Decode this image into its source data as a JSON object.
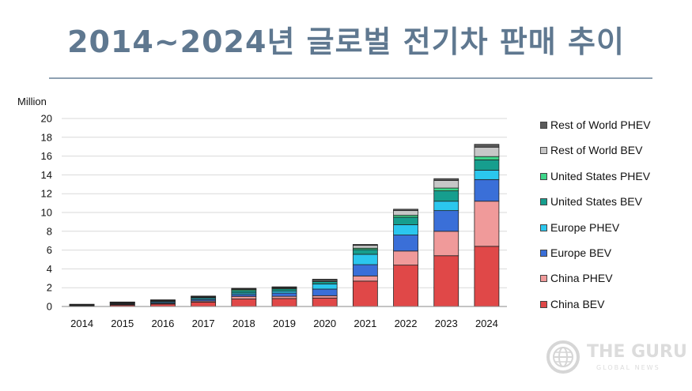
{
  "page": {
    "title": "2014~2024년 글로벌 전기차 판매 추이"
  },
  "logo": {
    "name": "THE GURU",
    "sub": "GLOBAL NEWS"
  },
  "chart_data": {
    "type": "bar",
    "stacked": true,
    "ylabel": "Million",
    "ylim": [
      0,
      20
    ],
    "yticks": [
      0,
      2,
      4,
      6,
      8,
      10,
      12,
      14,
      16,
      18,
      20
    ],
    "grid": true,
    "legend_position": "right",
    "categories": [
      "2014",
      "2015",
      "2016",
      "2017",
      "2018",
      "2019",
      "2020",
      "2021",
      "2022",
      "2023",
      "2024"
    ],
    "series": [
      {
        "name": "China BEV",
        "color": "#e04848",
        "values": [
          0.05,
          0.15,
          0.26,
          0.47,
          0.8,
          0.85,
          0.9,
          2.7,
          4.4,
          5.4,
          6.4
        ]
      },
      {
        "name": "China PHEV",
        "color": "#f09a9a",
        "values": [
          0.02,
          0.06,
          0.08,
          0.11,
          0.27,
          0.23,
          0.25,
          0.55,
          1.5,
          2.6,
          4.8
        ]
      },
      {
        "name": "Europe BEV",
        "color": "#3a6fd8",
        "values": [
          0.04,
          0.07,
          0.1,
          0.15,
          0.2,
          0.35,
          0.7,
          1.2,
          1.7,
          2.2,
          2.3
        ]
      },
      {
        "name": "Europe PHEV",
        "color": "#2bc7ee",
        "values": [
          0.03,
          0.07,
          0.1,
          0.13,
          0.17,
          0.2,
          0.55,
          1.1,
          1.1,
          1.0,
          1.0
        ]
      },
      {
        "name": "United States BEV",
        "color": "#169e8e",
        "values": [
          0.03,
          0.05,
          0.05,
          0.1,
          0.24,
          0.24,
          0.24,
          0.5,
          0.8,
          1.1,
          1.1
        ]
      },
      {
        "name": "United States PHEV",
        "color": "#3ed68a",
        "values": [
          0.02,
          0.03,
          0.05,
          0.05,
          0.12,
          0.08,
          0.07,
          0.15,
          0.2,
          0.3,
          0.35
        ]
      },
      {
        "name": "Rest of World BEV",
        "color": "#c7c7c7",
        "values": [
          0.02,
          0.02,
          0.03,
          0.05,
          0.07,
          0.08,
          0.12,
          0.3,
          0.5,
          0.8,
          1.0
        ]
      },
      {
        "name": "Rest of World PHEV",
        "color": "#5a5a5a",
        "values": [
          0.03,
          0.03,
          0.04,
          0.05,
          0.06,
          0.06,
          0.07,
          0.1,
          0.15,
          0.2,
          0.3
        ]
      }
    ]
  }
}
